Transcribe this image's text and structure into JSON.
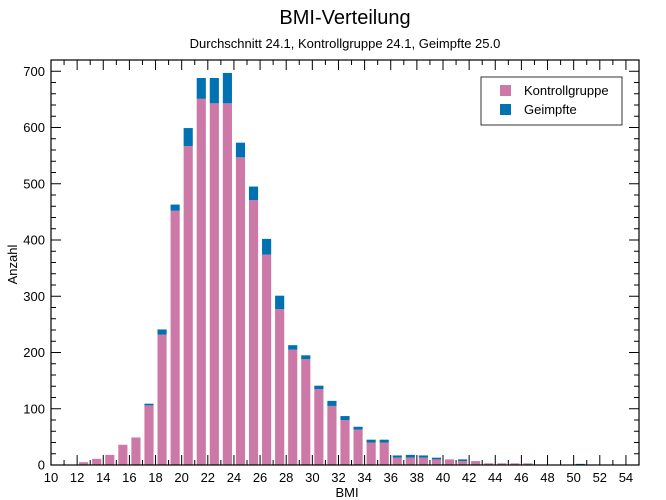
{
  "chart_data": {
    "type": "bar",
    "stacked": true,
    "title": "BMI-Verteilung",
    "subtitle": "Durchschnitt 24.1, Kontrollgruppe 24.1, Geimpfte 25.0",
    "xlabel": "BMI",
    "ylabel": "Anzahl",
    "xlim": [
      10,
      55
    ],
    "ylim": [
      0,
      720
    ],
    "x_ticks": [
      10,
      12,
      14,
      16,
      18,
      20,
      22,
      24,
      26,
      28,
      30,
      32,
      34,
      36,
      38,
      40,
      42,
      44,
      46,
      48,
      50,
      52,
      54
    ],
    "y_ticks": [
      0,
      100,
      200,
      300,
      400,
      500,
      600,
      700
    ],
    "legend_position": "top-right",
    "x": [
      10,
      11,
      12,
      13,
      14,
      15,
      16,
      17,
      18,
      19,
      20,
      21,
      22,
      23,
      24,
      25,
      26,
      27,
      28,
      29,
      30,
      31,
      32,
      33,
      34,
      35,
      36,
      37,
      38,
      39,
      40,
      41,
      42,
      43,
      44,
      45,
      46,
      47,
      48,
      49,
      50,
      51,
      52,
      53,
      54
    ],
    "series": [
      {
        "name": "Kontrollgruppe",
        "color": "#cc79a7",
        "values": [
          0,
          0,
          5,
          11,
          18,
          36,
          49,
          106,
          232,
          452,
          567,
          651,
          643,
          643,
          547,
          471,
          374,
          277,
          205,
          188,
          135,
          105,
          80,
          63,
          40,
          40,
          13,
          13,
          13,
          10,
          10,
          7,
          7,
          3,
          3,
          3,
          3,
          0,
          0,
          0,
          0,
          0,
          0,
          0,
          0
        ]
      },
      {
        "name": "Geimpfte",
        "color": "#0072b2",
        "values": [
          0,
          0,
          0,
          0,
          0,
          0,
          0,
          3,
          9,
          11,
          32,
          37,
          45,
          54,
          26,
          24,
          28,
          24,
          8,
          7,
          6,
          9,
          7,
          5,
          5,
          5,
          4,
          5,
          4,
          3,
          0,
          3,
          0,
          0,
          0,
          0,
          0,
          0,
          0,
          0,
          2,
          0,
          0,
          0,
          0
        ]
      }
    ]
  }
}
